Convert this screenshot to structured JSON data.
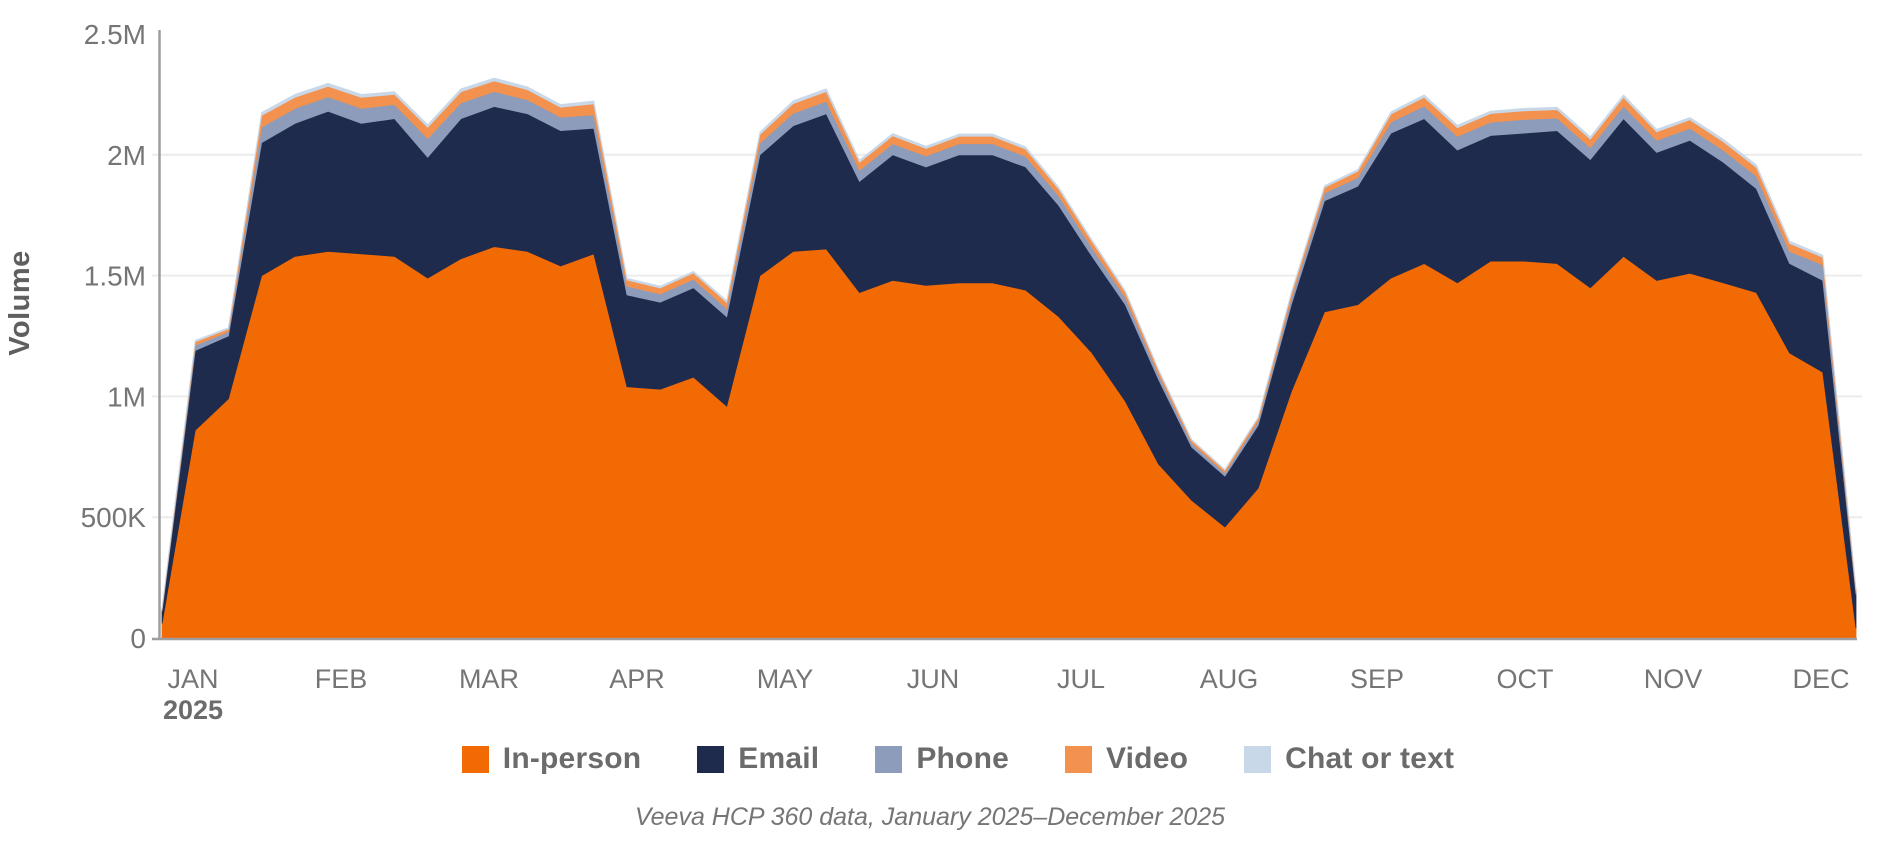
{
  "page": {
    "background": "#ffffff"
  },
  "chart_data": {
    "type": "area",
    "stacked": true,
    "title": "",
    "xlabel": "",
    "ylabel": "Volume",
    "value_unit": "millions of interactions (weekly)",
    "ylim": [
      0,
      2.5
    ],
    "grid": true,
    "legend_position": "bottom",
    "x_months": [
      "JAN",
      "FEB",
      "MAR",
      "APR",
      "MAY",
      "JUN",
      "JUL",
      "AUG",
      "SEP",
      "OCT",
      "NOV",
      "DEC"
    ],
    "x_year_label": "2025",
    "y_ticks": [
      {
        "value": 0,
        "label": "0"
      },
      {
        "value": 0.5,
        "label": "500K"
      },
      {
        "value": 1,
        "label": "1M"
      },
      {
        "value": 1.5,
        "label": "1.5M"
      },
      {
        "value": 2,
        "label": "2M"
      },
      {
        "value": 2.5,
        "label": "2.5M"
      }
    ],
    "series": [
      {
        "name": "In-person",
        "color": "#F26A04",
        "values": [
          0.06,
          0.86,
          0.99,
          1.5,
          1.58,
          1.6,
          1.59,
          1.58,
          1.49,
          1.57,
          1.62,
          1.6,
          1.54,
          1.59,
          1.04,
          1.03,
          1.08,
          0.96,
          1.5,
          1.6,
          1.61,
          1.43,
          1.48,
          1.46,
          1.47,
          1.47,
          1.44,
          1.33,
          1.18,
          0.98,
          0.72,
          0.57,
          0.46,
          0.62,
          1.02,
          1.35,
          1.38,
          1.49,
          1.55,
          1.47,
          1.56,
          1.56,
          1.55,
          1.45,
          1.58,
          1.48,
          1.51,
          1.47,
          1.43,
          1.18,
          1.1,
          0.04
        ]
      },
      {
        "name": "Email",
        "color": "#1F2B4D",
        "values": [
          0.05,
          0.33,
          0.26,
          0.55,
          0.55,
          0.58,
          0.54,
          0.57,
          0.5,
          0.58,
          0.58,
          0.57,
          0.56,
          0.52,
          0.38,
          0.36,
          0.37,
          0.37,
          0.5,
          0.52,
          0.56,
          0.46,
          0.52,
          0.49,
          0.53,
          0.53,
          0.51,
          0.46,
          0.4,
          0.4,
          0.35,
          0.22,
          0.21,
          0.26,
          0.36,
          0.46,
          0.49,
          0.6,
          0.6,
          0.55,
          0.52,
          0.53,
          0.55,
          0.53,
          0.57,
          0.53,
          0.55,
          0.5,
          0.43,
          0.37,
          0.38,
          0.14
        ]
      },
      {
        "name": "Phone",
        "color": "#8D9CBA",
        "values": [
          0.006,
          0.022,
          0.018,
          0.065,
          0.062,
          0.06,
          0.062,
          0.058,
          0.078,
          0.065,
          0.062,
          0.058,
          0.056,
          0.055,
          0.036,
          0.034,
          0.035,
          0.034,
          0.048,
          0.052,
          0.052,
          0.046,
          0.046,
          0.045,
          0.046,
          0.046,
          0.044,
          0.04,
          0.035,
          0.03,
          0.022,
          0.016,
          0.013,
          0.017,
          0.026,
          0.032,
          0.036,
          0.046,
          0.052,
          0.056,
          0.055,
          0.056,
          0.052,
          0.05,
          0.052,
          0.05,
          0.05,
          0.05,
          0.052,
          0.05,
          0.065,
          0.012
        ]
      },
      {
        "name": "Video",
        "color": "#F2924E",
        "values": [
          0.004,
          0.014,
          0.011,
          0.048,
          0.046,
          0.044,
          0.046,
          0.042,
          0.046,
          0.046,
          0.044,
          0.042,
          0.041,
          0.046,
          0.026,
          0.025,
          0.026,
          0.025,
          0.036,
          0.04,
          0.04,
          0.033,
          0.033,
          0.031,
          0.031,
          0.031,
          0.03,
          0.028,
          0.026,
          0.022,
          0.016,
          0.012,
          0.011,
          0.013,
          0.019,
          0.023,
          0.026,
          0.033,
          0.036,
          0.036,
          0.036,
          0.036,
          0.035,
          0.035,
          0.036,
          0.035,
          0.035,
          0.035,
          0.036,
          0.033,
          0.031,
          0.008
        ]
      },
      {
        "name": "Chat or text",
        "color": "#C9D8E8",
        "values": [
          0.002,
          0.006,
          0.005,
          0.012,
          0.012,
          0.012,
          0.012,
          0.011,
          0.011,
          0.012,
          0.012,
          0.011,
          0.011,
          0.012,
          0.007,
          0.007,
          0.007,
          0.007,
          0.01,
          0.011,
          0.011,
          0.009,
          0.009,
          0.009,
          0.009,
          0.009,
          0.009,
          0.008,
          0.007,
          0.006,
          0.005,
          0.004,
          0.004,
          0.004,
          0.006,
          0.007,
          0.007,
          0.009,
          0.01,
          0.01,
          0.01,
          0.01,
          0.01,
          0.01,
          0.01,
          0.01,
          0.01,
          0.01,
          0.01,
          0.01,
          0.009,
          0.003
        ]
      }
    ]
  },
  "caption": "Veeva HCP 360 data, January 2025–December 2025",
  "styles": {
    "axis_color": "#9E9E9E",
    "grid_color": "#ECECEC",
    "tick_label_color": "#757575",
    "legend_text_color": "#6B6B6B",
    "caption_color": "#757575"
  }
}
